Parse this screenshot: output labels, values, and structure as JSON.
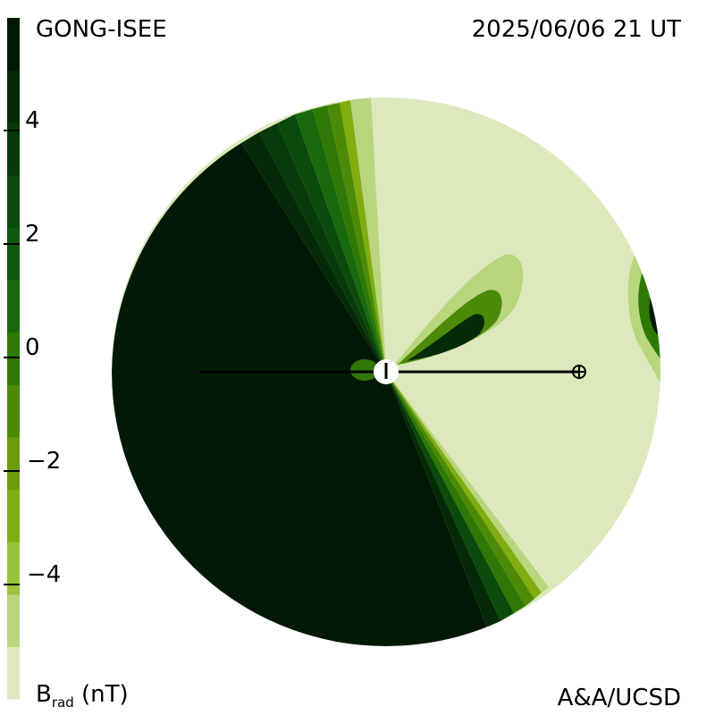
{
  "header": {
    "source": "GONG-ISEE",
    "timestamp": "2025/06/06 21 UT"
  },
  "footer": {
    "credit": "A&A/UCSD"
  },
  "colorbar": {
    "label_main": "B",
    "label_sub": "rad",
    "label_unit": "(nT)",
    "ticks": [
      {
        "value": 4,
        "text": "4"
      },
      {
        "value": 2,
        "text": "2"
      },
      {
        "value": 0,
        "text": "0"
      },
      {
        "value": -2,
        "text": "−2"
      },
      {
        "value": -4,
        "text": "−4"
      }
    ],
    "range": [
      -6,
      6
    ],
    "colors_bottom_to_top": [
      "#dde9bd",
      "#b8d67e",
      "#99c23d",
      "#80ad10",
      "#6a9c0c",
      "#4c8a07",
      "#2f7805",
      "#186a0d",
      "#0f5a0d",
      "#0a4a0c",
      "#073a0a",
      "#042a07"
    ],
    "positive_color": "#021a05",
    "negative_color": "#dde9bd"
  },
  "colors": {
    "positive": "#021a05",
    "negative": "#dde9bd",
    "marker": "#000000"
  }
}
